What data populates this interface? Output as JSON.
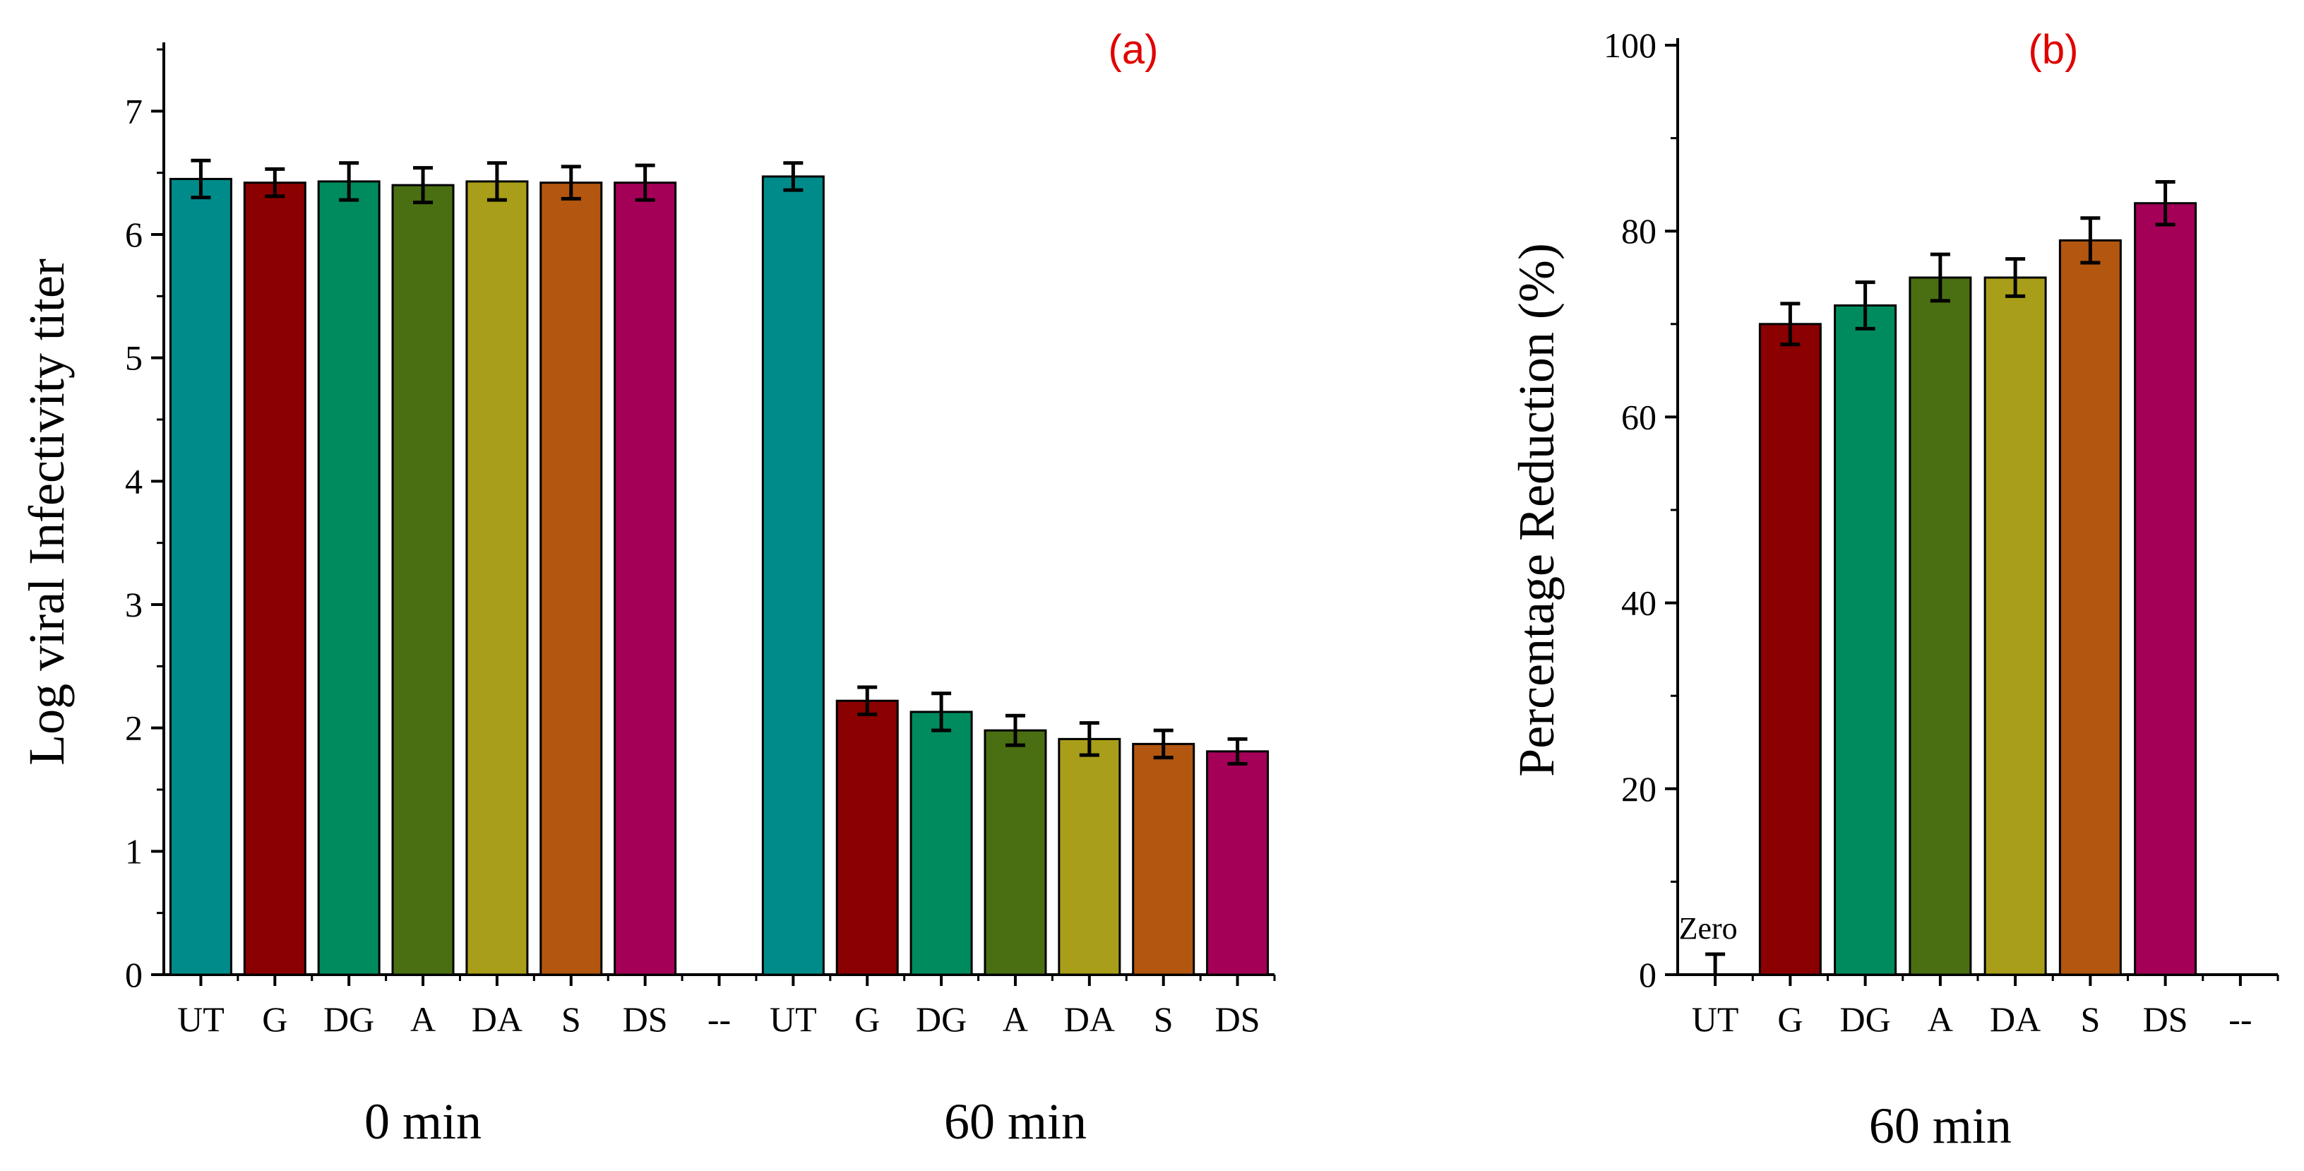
{
  "category_colors": {
    "UT": "#008B8B",
    "G": "#8B0000",
    "DG": "#008B5E",
    "A": "#4A6F12",
    "DA": "#A89E1A",
    "S": "#B25610",
    "DS": "#A50058"
  },
  "panel_label_color": "#E00000",
  "chart_data": [
    {
      "type": "bar",
      "panel_label": "(a)",
      "ylabel": "Log viral Infectivity titer",
      "ylim": [
        0,
        7.5
      ],
      "yticks": [
        0,
        1,
        2,
        3,
        4,
        5,
        6,
        7
      ],
      "categories": [
        "UT",
        "G",
        "DG",
        "A",
        "DA",
        "S",
        "DS",
        "--",
        "UT",
        "G",
        "DG",
        "A",
        "DA",
        "S",
        "DS"
      ],
      "values": [
        6.45,
        6.42,
        6.43,
        6.4,
        6.43,
        6.42,
        6.42,
        null,
        6.47,
        2.22,
        2.13,
        1.98,
        1.91,
        1.87,
        1.81
      ],
      "errors": [
        0.15,
        0.11,
        0.15,
        0.14,
        0.15,
        0.13,
        0.14,
        null,
        0.11,
        0.11,
        0.15,
        0.12,
        0.13,
        0.11,
        0.1
      ],
      "groups": [
        {
          "label": "0 min",
          "categories": [
            "UT",
            "G",
            "DG",
            "A",
            "DA",
            "S",
            "DS"
          ]
        },
        {
          "label": "60 min",
          "categories": [
            "UT",
            "G",
            "DG",
            "A",
            "DA",
            "S",
            "DS"
          ]
        }
      ]
    },
    {
      "type": "bar",
      "panel_label": "(b)",
      "ylabel": "Percentage Reduction (%)",
      "ylim": [
        0,
        100
      ],
      "yticks": [
        0,
        20,
        40,
        60,
        80,
        100
      ],
      "categories": [
        "UT",
        "G",
        "DG",
        "A",
        "DA",
        "S",
        "DS",
        "--"
      ],
      "values": [
        0,
        70,
        72,
        75,
        75,
        79,
        83,
        null
      ],
      "errors": [
        2.2,
        2.2,
        2.5,
        2.5,
        2.0,
        2.4,
        2.3,
        null
      ],
      "annotation": "Zero",
      "group_label": "60 min"
    }
  ]
}
